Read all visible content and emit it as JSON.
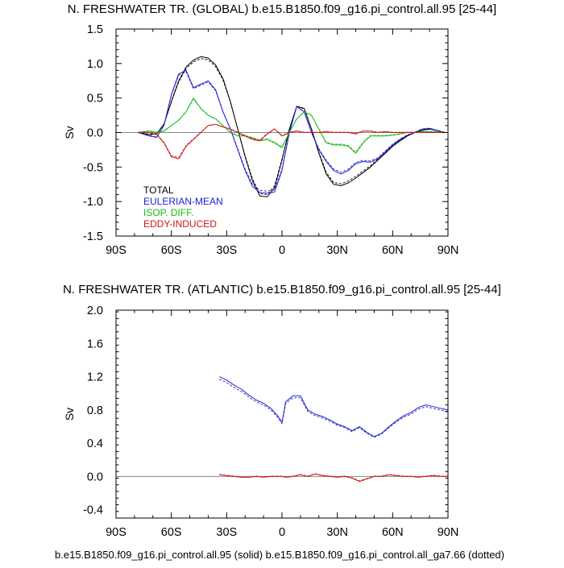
{
  "footer": "b.e15.B1850.f09_g16.pi_control.all.95 (solid) b.e15.B1850.f09_g16.pi_control.all_ga7.66 (dotted)",
  "colors": {
    "total": "#000000",
    "eulerian": "#1f1fd6",
    "isop": "#12bb12",
    "eddy": "#d41515",
    "zero": "#888888"
  },
  "chart_data": [
    {
      "type": "line",
      "title": "N. FRESHWATER TR. (GLOBAL) b.e15.B1850.f09_g16.pi_control.all.95 [25-44]",
      "xlabel": "",
      "ylabel": "Sv",
      "xlim": [
        -90,
        90
      ],
      "ylim": [
        -1.5,
        1.5
      ],
      "xticks": [
        -90,
        -60,
        -30,
        0,
        30,
        60,
        90
      ],
      "xtick_labels": [
        "90S",
        "60S",
        "30S",
        "0",
        "30N",
        "60N",
        "90N"
      ],
      "yticks": [
        -1.5,
        -1.0,
        -0.5,
        0.0,
        0.5,
        1.0,
        1.5
      ],
      "ytick_labels": [
        "-1.5",
        "-1.0",
        "-0.5",
        "0.0",
        "0.5",
        "1.0",
        "1.5"
      ],
      "legend": {
        "position": "lower-left",
        "entries": [
          "TOTAL",
          "EULERIAN-MEAN",
          "ISOP. DIFF.",
          "EDDY-INDUCED"
        ]
      },
      "x": [
        -78,
        -72,
        -68,
        -64,
        -60,
        -56,
        -52,
        -48,
        -44,
        -40,
        -36,
        -32,
        -28,
        -24,
        -20,
        -16,
        -12,
        -8,
        -4,
        0,
        4,
        8,
        12,
        16,
        20,
        24,
        28,
        32,
        36,
        40,
        44,
        48,
        52,
        56,
        60,
        64,
        68,
        72,
        76,
        80,
        84,
        88
      ],
      "series": [
        {
          "name": "TOTAL",
          "color_key": "total",
          "values": [
            0.0,
            -0.03,
            -0.02,
            0.12,
            0.45,
            0.75,
            0.95,
            1.05,
            1.1,
            1.08,
            0.98,
            0.78,
            0.45,
            0.05,
            -0.35,
            -0.7,
            -0.92,
            -0.93,
            -0.8,
            -0.4,
            0.05,
            0.38,
            0.35,
            0.05,
            -0.3,
            -0.6,
            -0.75,
            -0.77,
            -0.73,
            -0.66,
            -0.58,
            -0.5,
            -0.4,
            -0.3,
            -0.2,
            -0.12,
            -0.05,
            0.0,
            0.03,
            0.05,
            0.03,
            0.0
          ]
        },
        {
          "name": "EULERIAN-MEAN",
          "color_key": "eulerian",
          "values": [
            0.0,
            -0.05,
            -0.07,
            0.1,
            0.55,
            0.85,
            0.9,
            0.65,
            0.7,
            0.75,
            0.62,
            0.3,
            0.05,
            -0.25,
            -0.55,
            -0.78,
            -0.87,
            -0.88,
            -0.86,
            -0.55,
            0.0,
            0.38,
            0.3,
            0.0,
            -0.25,
            -0.42,
            -0.55,
            -0.6,
            -0.55,
            -0.45,
            -0.42,
            -0.43,
            -0.38,
            -0.28,
            -0.18,
            -0.1,
            -0.04,
            0.0,
            0.05,
            0.06,
            0.03,
            0.0
          ]
        },
        {
          "name": "ISOP. DIFF.",
          "color_key": "isop",
          "values": [
            0.0,
            0.02,
            0.0,
            0.02,
            0.1,
            0.18,
            0.3,
            0.5,
            0.35,
            0.25,
            0.2,
            0.1,
            0.0,
            -0.05,
            -0.05,
            -0.08,
            -0.12,
            -0.1,
            -0.15,
            -0.22,
            0.0,
            0.2,
            0.3,
            0.25,
            0.05,
            -0.15,
            -0.18,
            -0.18,
            -0.2,
            -0.3,
            -0.15,
            -0.05,
            -0.05,
            -0.05,
            -0.04,
            -0.02,
            0.0,
            0.0,
            0.01,
            0.01,
            0.01,
            0.0
          ]
        },
        {
          "name": "EDDY-INDUCED",
          "color_key": "eddy",
          "values": [
            0.0,
            0.0,
            -0.03,
            -0.15,
            -0.35,
            -0.38,
            -0.2,
            -0.1,
            0.0,
            0.1,
            0.12,
            0.08,
            0.05,
            0.0,
            -0.05,
            -0.1,
            -0.12,
            -0.02,
            0.05,
            -0.05,
            0.0,
            0.02,
            0.0,
            0.0,
            0.0,
            0.01,
            0.0,
            0.0,
            0.0,
            -0.02,
            0.02,
            0.02,
            0.0,
            0.01,
            0.0,
            0.0,
            0.0,
            0.0,
            0.0,
            0.0,
            0.0,
            0.0
          ]
        }
      ]
    },
    {
      "type": "line",
      "title": "N. FRESHWATER TR. (ATLANTIC) b.e15.B1850.f09_g16.pi_control.all.95 [25-44]",
      "xlabel": "",
      "ylabel": "Sv",
      "xlim": [
        -90,
        90
      ],
      "ylim": [
        -0.5,
        2.0
      ],
      "xticks": [
        -90,
        -60,
        -30,
        0,
        30,
        60,
        90
      ],
      "xtick_labels": [
        "90S",
        "60S",
        "30S",
        "0",
        "30N",
        "60N",
        "90N"
      ],
      "yticks": [
        -0.4,
        0.0,
        0.4,
        0.8,
        1.2,
        1.6,
        2.0
      ],
      "ytick_labels": [
        "-0.4",
        "0.0",
        "0.4",
        "0.8",
        "1.2",
        "1.6",
        "2.0"
      ],
      "x": [
        -34,
        -30,
        -26,
        -22,
        -18,
        -14,
        -10,
        -6,
        -2,
        0,
        2,
        6,
        10,
        14,
        18,
        22,
        26,
        30,
        34,
        38,
        42,
        46,
        50,
        54,
        58,
        62,
        66,
        70,
        74,
        78,
        82,
        86,
        90
      ],
      "series": [
        {
          "name": "EULERIAN-MEAN",
          "color_key": "eulerian",
          "values": [
            1.2,
            1.16,
            1.1,
            1.05,
            0.98,
            0.92,
            0.88,
            0.82,
            0.72,
            0.65,
            0.9,
            0.97,
            0.97,
            0.8,
            0.75,
            0.72,
            0.68,
            0.63,
            0.6,
            0.55,
            0.6,
            0.53,
            0.48,
            0.52,
            0.6,
            0.67,
            0.73,
            0.77,
            0.83,
            0.86,
            0.84,
            0.82,
            0.8
          ]
        },
        {
          "name": "EDDY-INDUCED",
          "color_key": "eddy",
          "values": [
            0.02,
            0.01,
            0.0,
            -0.01,
            -0.01,
            0.0,
            -0.01,
            0.0,
            0.0,
            0.0,
            -0.01,
            0.0,
            0.02,
            0.0,
            0.03,
            0.01,
            0.0,
            -0.01,
            0.0,
            -0.02,
            -0.06,
            -0.03,
            0.0,
            0.0,
            0.02,
            0.01,
            0.0,
            0.0,
            -0.01,
            0.0,
            0.01,
            0.0,
            0.0
          ]
        }
      ]
    }
  ]
}
